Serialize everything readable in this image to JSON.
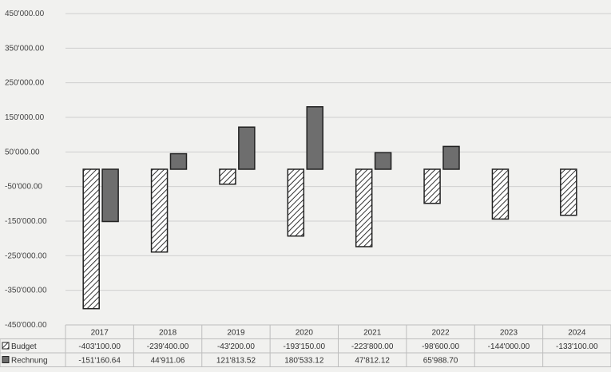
{
  "chart_data": {
    "type": "bar",
    "title": "",
    "ylim": [
      -450000,
      450000
    ],
    "y_ticks": [
      450000,
      350000,
      250000,
      150000,
      50000,
      -50000,
      -150000,
      -250000,
      -350000,
      -450000
    ],
    "y_tick_labels": [
      "450'000.00",
      "350'000.00",
      "250'000.00",
      "150'000.00",
      "50'000.00",
      "-50'000.00",
      "-150'000.00",
      "-250'000.00",
      "-350'000.00",
      "-450'000.00"
    ],
    "grid": true,
    "legend": "data-table",
    "categories": [
      "2017",
      "2018",
      "2019",
      "2020",
      "2021",
      "2022",
      "2023",
      "2024"
    ],
    "series": [
      {
        "name": "Budget",
        "pattern": "hatched",
        "color": "#ffffff",
        "values": [
          -403100,
          -239400,
          -43200,
          -193150,
          -223800,
          -98600,
          -144000,
          -133100
        ],
        "labels": [
          "-403'100.00",
          "-239'400.00",
          "-43'200.00",
          "-193'150.00",
          "-223'800.00",
          "-98'600.00",
          "-144'000.00",
          "-133'100.00"
        ]
      },
      {
        "name": "Rechnung",
        "pattern": "solid",
        "color": "#6e6e6e",
        "values": [
          -151160.64,
          44911.06,
          121813.52,
          180533.12,
          47812.12,
          65988.7,
          null,
          null
        ],
        "labels": [
          "-151'160.64",
          "44'911.06",
          "121'813.52",
          "180'533.12",
          "47'812.12",
          "65'988.70",
          "",
          ""
        ]
      }
    ]
  }
}
